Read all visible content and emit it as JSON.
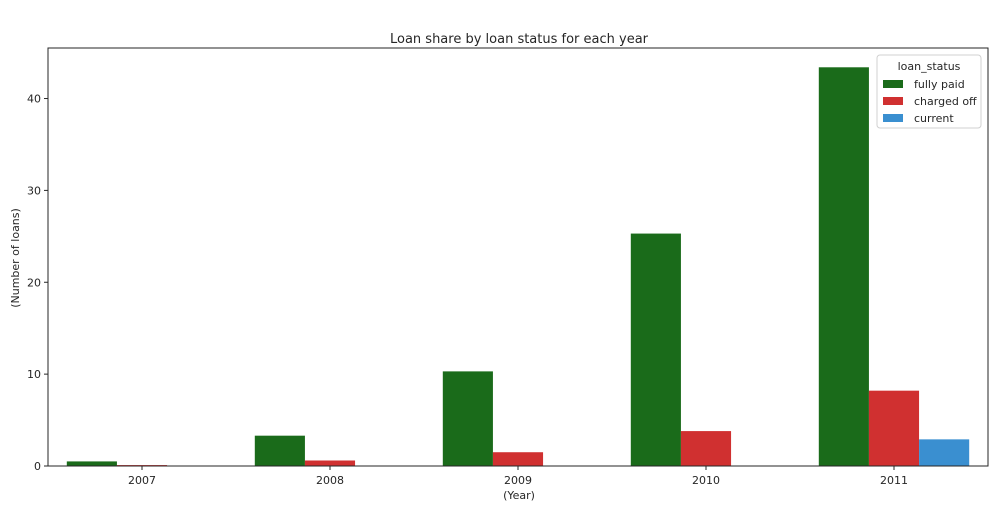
{
  "chart_data": {
    "type": "bar",
    "title": "Loan share by loan status for each year",
    "xlabel": "(Year)",
    "ylabel": "(Number of loans)",
    "categories": [
      "2007",
      "2008",
      "2009",
      "2010",
      "2011"
    ],
    "series": [
      {
        "name": "fully paid",
        "color": "#1a6b1a",
        "values": [
          0.5,
          3.3,
          10.3,
          25.3,
          43.4
        ]
      },
      {
        "name": "charged off",
        "color": "#d03030",
        "values": [
          0.1,
          0.6,
          1.5,
          3.8,
          8.2
        ]
      },
      {
        "name": "current",
        "color": "#3a8fd0",
        "values": [
          0,
          0,
          0,
          0,
          2.9
        ]
      }
    ],
    "ylim": [
      0,
      45.5
    ],
    "yticks": [
      0,
      10,
      20,
      30,
      40
    ],
    "legend": {
      "title": "loan_status",
      "position": "top-right"
    },
    "grid": false
  }
}
